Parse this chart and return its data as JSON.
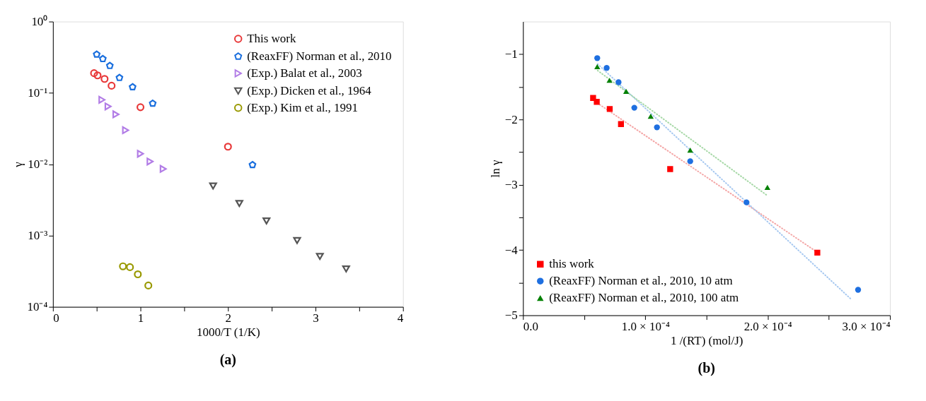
{
  "chart_data": [
    {
      "type": "scatter",
      "xlabel": "1000/T (1/K)",
      "ylabel": "γ",
      "annotations": [
        "(a)"
      ],
      "log": "y",
      "grid": false,
      "legend": "top right",
      "xlim": [
        0,
        4
      ],
      "xticks": [
        0,
        {
          "value": 0.5,
          "label": null
        },
        1,
        {
          "value": 1.5,
          "label": null
        },
        2,
        {
          "value": 2.5,
          "label": null
        },
        3,
        {
          "value": 3.5,
          "label": null
        },
        4
      ],
      "ylim": [
        0.0001,
        1
      ],
      "yticks": [
        {
          "value": 0.0001,
          "label": "10⁻⁴"
        },
        {
          "value": 0.001,
          "label": "10⁻³"
        },
        {
          "value": 0.01,
          "label": "10⁻²"
        },
        {
          "value": 0.1,
          "label": "10⁻¹"
        },
        {
          "value": 1,
          "label": "10⁰"
        }
      ],
      "series": [
        {
          "name": "This work",
          "color": "#e8393a",
          "marker": "circle",
          "x": [
            0.47,
            0.51,
            0.59,
            0.67,
            1.0,
            2.0
          ],
          "values": [
            0.189,
            0.176,
            0.157,
            0.126,
            0.063,
            0.0176
          ]
        },
        {
          "name": "(ReaxFF) Norman et al., 2010",
          "color": "#1a6fde",
          "x": [
            0.5,
            0.57,
            0.65,
            0.76,
            0.91,
            1.14,
            2.28
          ],
          "values": [
            0.347,
            0.3,
            0.24,
            0.163,
            0.121,
            0.071,
            0.0098
          ]
        },
        {
          "name": "(Exp.) Balat et al., 2003",
          "color": "#b27de6",
          "marker": "triangle-right",
          "x": [
            0.56,
            0.63,
            0.72,
            0.83,
            1.0,
            1.11,
            1.26
          ],
          "values": [
            0.08,
            0.0645,
            0.05,
            0.03,
            0.014,
            0.0109,
            0.0086
          ]
        },
        {
          "name": "(Exp.) Dicken et al., 1964",
          "color": "#555555",
          "marker": "triangle-down",
          "x": [
            1.83,
            2.13,
            2.44,
            2.79,
            3.05,
            3.35
          ],
          "values": [
            0.00494,
            0.00281,
            0.0016,
            0.00085,
            0.00051,
            0.00034
          ]
        },
        {
          "name": "(Exp.) Kim et al., 1991",
          "color": "#999900",
          "marker": "circle",
          "x": [
            0.8,
            0.88,
            0.97,
            1.09
          ],
          "values": [
            0.00037,
            0.00036,
            0.000286,
            0.000199
          ]
        }
      ]
    },
    {
      "type": "scatter",
      "xlabel": "1 /(RT) (mol/J)",
      "ylabel": "ln γ",
      "annotations": [
        "(b)"
      ],
      "grid": false,
      "legend": "bottom left",
      "xlim": [
        0,
        0.0003
      ],
      "xticks": [
        {
          "value": 0,
          "label": "0.0"
        },
        {
          "value": 5e-05,
          "label": null
        },
        {
          "value": 0.0001,
          "label": "1.0 × 10⁻⁴"
        },
        {
          "value": 0.00015,
          "label": null
        },
        {
          "value": 0.0002,
          "label": "2.0 × 10⁻⁴"
        },
        {
          "value": 0.00025,
          "label": null
        },
        {
          "value": 0.0003,
          "label": "3.0 × 10⁻⁴"
        }
      ],
      "ylim": [
        -5,
        -0.5
      ],
      "yticks": [
        {
          "value": -5,
          "label": "−5"
        },
        {
          "value": -4.5,
          "label": null
        },
        {
          "value": -4,
          "label": "−4"
        },
        {
          "value": -3.5,
          "label": null
        },
        {
          "value": -3,
          "label": "−3"
        },
        {
          "value": -2.5,
          "label": null
        },
        {
          "value": -2,
          "label": "−2"
        },
        {
          "value": -1.5,
          "label": null
        },
        {
          "value": -1,
          "label": "−1"
        }
      ],
      "series": [
        {
          "name": "this work",
          "color": "#ff0000",
          "marker": "square",
          "x": [
            5.73e-05,
            6.03e-05,
            7.09e-05,
            8.01e-05,
            0.0001203,
            0.0002406
          ],
          "values": [
            -1.67,
            -1.73,
            -1.84,
            -2.07,
            -2.76,
            -4.04
          ]
        },
        {
          "name": "(ReaxFF) Norman et al., 2010, 10 atm",
          "color": "#1e6fe0",
          "marker": "circle",
          "x": [
            6.07e-05,
            6.84e-05,
            7.81e-05,
            9.1e-05,
            0.0001095,
            0.0001367,
            0.0001827,
            0.0002739
          ],
          "values": [
            -1.06,
            -1.21,
            -1.43,
            -1.82,
            -2.12,
            -2.64,
            -3.27,
            -4.61
          ]
        },
        {
          "name": "(ReaxFF) Norman et al., 2010, 100 atm",
          "color": "#008000",
          "marker": "triangle-up",
          "x": [
            6.07e-05,
            7.07e-05,
            8.43e-05,
            0.0001044,
            0.0001367,
            0.0001998
          ],
          "values": [
            -1.19,
            -1.4,
            -1.57,
            -1.95,
            -2.47,
            -3.04
          ]
        },
        {
          "type": "line",
          "color": "#f4a6a6",
          "line_style": "dotted",
          "x": [
            5.7e-05,
            0.000241
          ],
          "values": [
            -1.7,
            -4.04
          ]
        },
        {
          "type": "line",
          "color": "#a6c8f0",
          "line_style": "dotted",
          "x": [
            6.1e-05,
            0.000268
          ],
          "values": [
            -1.15,
            -4.75
          ]
        },
        {
          "type": "line",
          "color": "#a6d8a6",
          "line_style": "dotted",
          "x": [
            6.1e-05,
            0.0002
          ],
          "values": [
            -1.25,
            -3.17
          ]
        }
      ]
    }
  ]
}
